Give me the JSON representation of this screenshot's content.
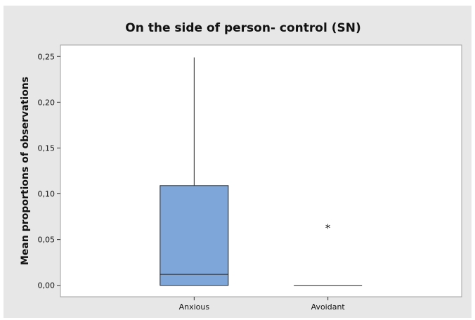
{
  "chart_data": {
    "type": "boxplot",
    "title": "On the side of person- control (SN)",
    "xlabel": "",
    "ylabel": "Mean proportions of observations",
    "ylim": [
      -0.0125,
      0.2625
    ],
    "yticks": [
      0.0,
      0.05,
      0.1,
      0.15,
      0.2,
      0.25
    ],
    "ytick_labels": [
      "0,00",
      "0,05",
      "0,10",
      "0,15",
      "0,20",
      "0,25"
    ],
    "categories": [
      "Anxious",
      "Avoidant"
    ],
    "boxes": [
      {
        "category": "Anxious",
        "min": 0.0,
        "q1": 0.0,
        "median": 0.012,
        "q3": 0.109,
        "max": 0.249,
        "outliers": []
      },
      {
        "category": "Avoidant",
        "min": 0.0,
        "q1": 0.0,
        "median": 0.0,
        "q3": 0.0,
        "max": 0.0,
        "outliers": [
          0.063
        ]
      }
    ],
    "box_color": "#7ea6d9",
    "grid": false,
    "legend": "none"
  }
}
